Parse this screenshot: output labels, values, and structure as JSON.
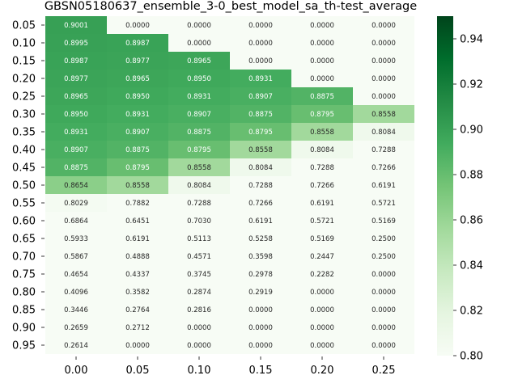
{
  "chart_data": {
    "type": "heatmap",
    "title": "GBSN05180637_ensemble_3-0_best_model_sa_th-test_average",
    "xlabel": "",
    "ylabel": "",
    "x_ticks": [
      "0.00",
      "0.05",
      "0.10",
      "0.15",
      "0.20",
      "0.25"
    ],
    "y_ticks": [
      "0.05",
      "0.10",
      "0.15",
      "0.20",
      "0.25",
      "0.30",
      "0.35",
      "0.40",
      "0.45",
      "0.50",
      "0.55",
      "0.60",
      "0.65",
      "0.70",
      "0.75",
      "0.80",
      "0.85",
      "0.90",
      "0.95"
    ],
    "values": [
      [
        0.9001,
        0.0,
        0.0,
        0.0,
        0.0,
        0.0
      ],
      [
        0.8995,
        0.8987,
        0.0,
        0.0,
        0.0,
        0.0
      ],
      [
        0.8987,
        0.8977,
        0.8965,
        0.0,
        0.0,
        0.0
      ],
      [
        0.8977,
        0.8965,
        0.895,
        0.8931,
        0.0,
        0.0
      ],
      [
        0.8965,
        0.895,
        0.8931,
        0.8907,
        0.8875,
        0.0
      ],
      [
        0.895,
        0.8931,
        0.8907,
        0.8875,
        0.8795,
        0.8558
      ],
      [
        0.8931,
        0.8907,
        0.8875,
        0.8795,
        0.8558,
        0.8084
      ],
      [
        0.8907,
        0.8875,
        0.8795,
        0.8558,
        0.8084,
        0.7288
      ],
      [
        0.8875,
        0.8795,
        0.8558,
        0.8084,
        0.7288,
        0.7266
      ],
      [
        0.8654,
        0.8558,
        0.8084,
        0.7288,
        0.7266,
        0.6191
      ],
      [
        0.8029,
        0.7882,
        0.7288,
        0.7266,
        0.6191,
        0.5721
      ],
      [
        0.6864,
        0.6451,
        0.703,
        0.6191,
        0.5721,
        0.5169
      ],
      [
        0.5933,
        0.6191,
        0.5113,
        0.5258,
        0.5169,
        0.25
      ],
      [
        0.5867,
        0.4888,
        0.4571,
        0.3598,
        0.2447,
        0.25
      ],
      [
        0.4654,
        0.4337,
        0.3745,
        0.2978,
        0.2282,
        0.0
      ],
      [
        0.4096,
        0.3582,
        0.2874,
        0.2919,
        0.0,
        0.0
      ],
      [
        0.3446,
        0.2764,
        0.2816,
        0.0,
        0.0,
        0.0
      ],
      [
        0.2659,
        0.2712,
        0.0,
        0.0,
        0.0,
        0.0
      ],
      [
        0.2614,
        0.0,
        0.0,
        0.0,
        0.0,
        0.0
      ]
    ],
    "value_format": "4 decimals",
    "colormap": "Greens",
    "vmin": 0.8,
    "vmax": 0.95,
    "colorbar_ticks": [
      "0.80",
      "0.82",
      "0.84",
      "0.86",
      "0.88",
      "0.90",
      "0.92",
      "0.94"
    ],
    "grid": false,
    "legend": "colorbar right"
  }
}
